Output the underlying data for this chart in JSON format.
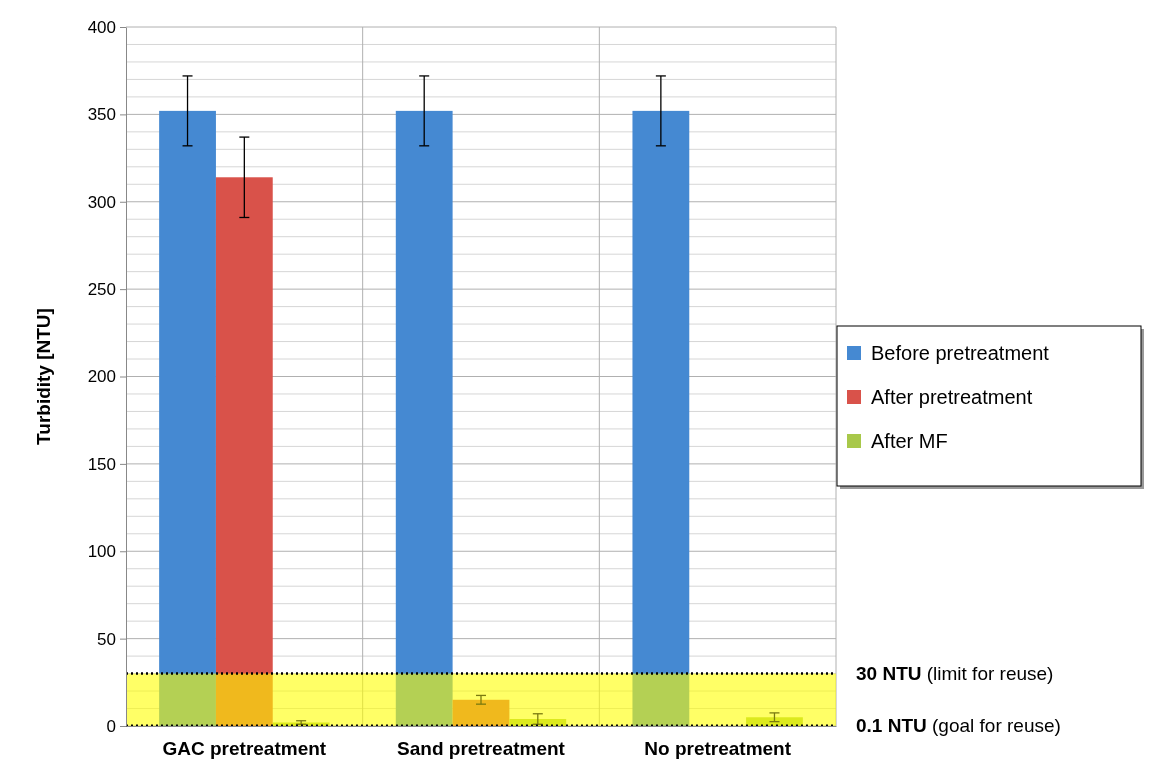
{
  "chart_data": {
    "type": "bar",
    "ylabel": "Turbidity [NTU]",
    "categories": [
      "GAC pretreatment",
      "Sand pretreatment",
      "No pretreatment"
    ],
    "series": [
      {
        "name": "Before pretreatment",
        "color": "#4589d2",
        "values": [
          352,
          352,
          352
        ],
        "errors": [
          20,
          20,
          20
        ]
      },
      {
        "name": "After pretreatment",
        "color": "#d9524a",
        "values": [
          314,
          15,
          null
        ],
        "errors": [
          23,
          2.5,
          null
        ]
      },
      {
        "name": "After MF",
        "color": "#a8c84a",
        "values": [
          2,
          4,
          5
        ],
        "errors": [
          1,
          3,
          2.5
        ]
      }
    ],
    "ylim": [
      0,
      400
    ],
    "yticks": [
      0,
      {
        "value": 10,
        "label": null
      },
      {
        "value": 20,
        "label": null
      },
      {
        "value": 30,
        "label": null
      },
      {
        "value": 40,
        "label": null
      },
      50,
      {
        "value": 60,
        "label": null
      },
      {
        "value": 70,
        "label": null
      },
      {
        "value": 80,
        "label": null
      },
      {
        "value": 90,
        "label": null
      },
      100,
      {
        "value": 110,
        "label": null
      },
      {
        "value": 120,
        "label": null
      },
      {
        "value": 130,
        "label": null
      },
      {
        "value": 140,
        "label": null
      },
      150,
      {
        "value": 160,
        "label": null
      },
      {
        "value": 170,
        "label": null
      },
      {
        "value": 180,
        "label": null
      },
      {
        "value": 190,
        "label": null
      },
      200,
      {
        "value": 210,
        "label": null
      },
      {
        "value": 220,
        "label": null
      },
      {
        "value": 230,
        "label": null
      },
      {
        "value": 240,
        "label": null
      },
      250,
      {
        "value": 260,
        "label": null
      },
      {
        "value": 270,
        "label": null
      },
      {
        "value": 280,
        "label": null
      },
      {
        "value": 290,
        "label": null
      },
      300,
      {
        "value": 310,
        "label": null
      },
      {
        "value": 320,
        "label": null
      },
      {
        "value": 330,
        "label": null
      },
      {
        "value": 340,
        "label": null
      },
      350,
      {
        "value": 360,
        "label": null
      },
      {
        "value": 370,
        "label": null
      },
      {
        "value": 380,
        "label": null
      },
      {
        "value": 390,
        "label": null
      },
      400
    ],
    "grid": true,
    "legend": "right",
    "bands": [
      {
        "axis": "y",
        "from": 0.1,
        "to": 30,
        "color": "#ffff00"
      }
    ],
    "ref_lines": [
      {
        "axis": "y",
        "value": 30,
        "label": "30 NTU (limit for reuse)",
        "line_style": "dotted"
      },
      {
        "axis": "y",
        "value": 0.1,
        "label": "0.1 NTU (goal for reuse)",
        "line_style": "dotted"
      }
    ]
  }
}
